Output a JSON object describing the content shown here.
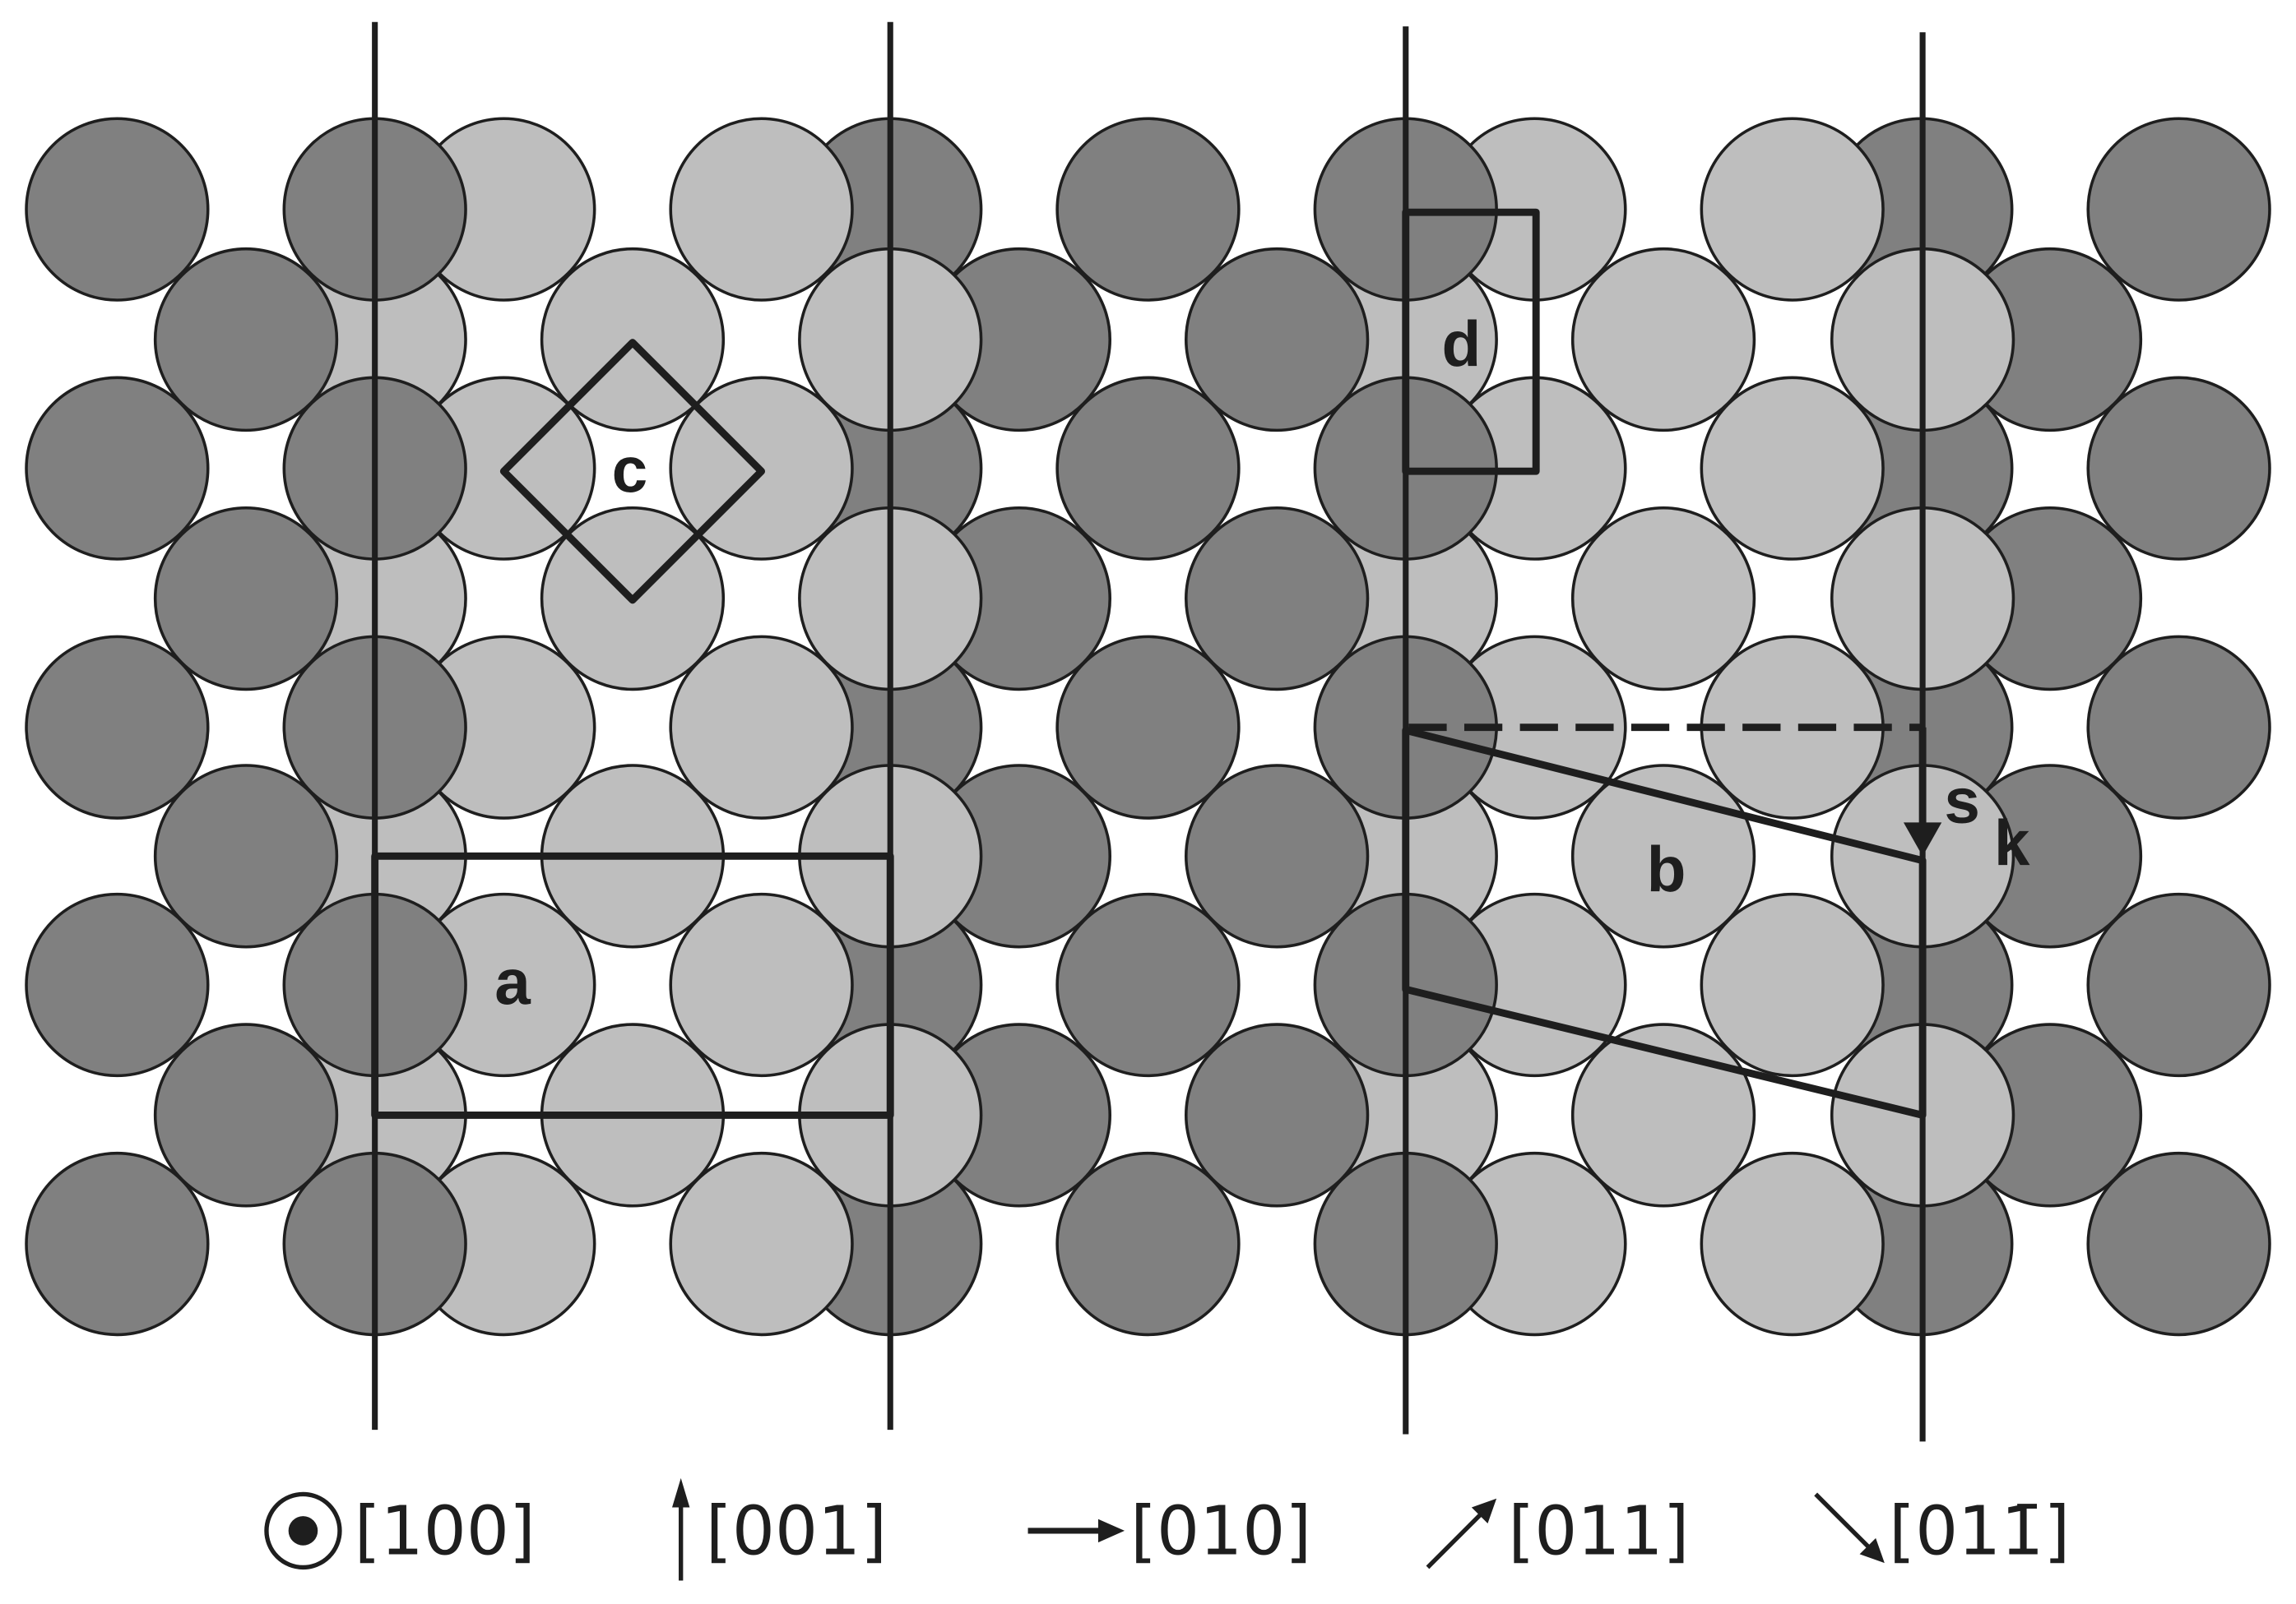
{
  "colors": {
    "dark_atom": "#808080",
    "light_atom": "#bebebe",
    "outline": "#1e1e1e"
  },
  "labels": {
    "a": "a",
    "b": "b",
    "c": "c",
    "d": "d",
    "s": "s",
    "k": "k"
  },
  "legend": [
    {
      "icon": "out-of-plane-dot-icon",
      "text": "[100]"
    },
    {
      "icon": "arrow-up-icon",
      "text": "[001]"
    },
    {
      "icon": "arrow-right-icon",
      "text": "[010]"
    },
    {
      "icon": "arrow-up-right-icon",
      "text": "[011]"
    },
    {
      "icon": "arrow-down-right-icon",
      "text": "[011̄]"
    }
  ]
}
